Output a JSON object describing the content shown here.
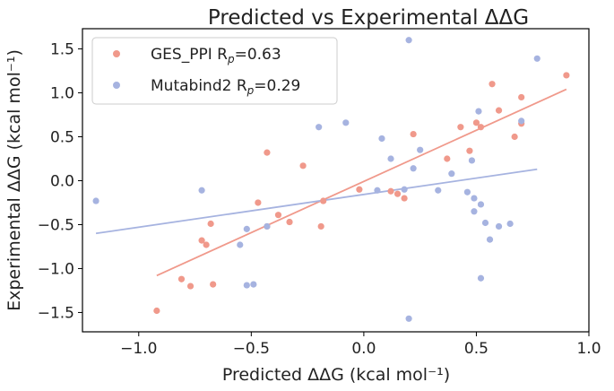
{
  "chart_data": {
    "type": "scatter",
    "title": "Predicted vs Experimental ΔΔG",
    "xlabel": "Predicted ΔΔG (kcal mol⁻¹)",
    "ylabel": "Experimental ΔΔG (kcal mol⁻¹)",
    "xlim": [
      -1.25,
      1.0
    ],
    "ylim": [
      -1.72,
      1.73
    ],
    "xticks": [
      -1.0,
      -0.5,
      0.0,
      0.5,
      1.0
    ],
    "xtick_labels": [
      "−1.0",
      "−0.5",
      "0.0",
      "0.5",
      "1.0"
    ],
    "yticks": [
      -1.5,
      -1.0,
      -0.5,
      0.0,
      0.5,
      1.0,
      1.5
    ],
    "ytick_labels": [
      "−1.5",
      "−1.0",
      "−0.5",
      "0.0",
      "0.5",
      "1.0",
      "1.5"
    ],
    "legend_position": "top-left",
    "series": [
      {
        "name": "GES_PPI",
        "legend_label": "GES_PPI R",
        "legend_sub": "p",
        "legend_value": "=0.63",
        "color": "#f0998b",
        "fit": {
          "x": [
            -0.92,
            0.9
          ],
          "y": [
            -1.08,
            1.04
          ]
        },
        "points": [
          [
            -0.92,
            -1.48
          ],
          [
            -0.81,
            -1.12
          ],
          [
            -0.77,
            -1.2
          ],
          [
            -0.72,
            -0.68
          ],
          [
            -0.7,
            -0.73
          ],
          [
            -0.68,
            -0.49
          ],
          [
            -0.67,
            -1.18
          ],
          [
            -0.47,
            -0.25
          ],
          [
            -0.43,
            0.32
          ],
          [
            -0.43,
            -0.52
          ],
          [
            -0.38,
            -0.39
          ],
          [
            -0.33,
            -0.47
          ],
          [
            -0.27,
            0.17
          ],
          [
            -0.19,
            -0.52
          ],
          [
            -0.18,
            -0.23
          ],
          [
            -0.02,
            -0.1
          ],
          [
            0.12,
            -0.12
          ],
          [
            0.15,
            -0.15
          ],
          [
            0.18,
            -0.2
          ],
          [
            0.22,
            0.53
          ],
          [
            0.37,
            0.25
          ],
          [
            0.43,
            0.61
          ],
          [
            0.47,
            0.34
          ],
          [
            0.5,
            0.66
          ],
          [
            0.52,
            0.61
          ],
          [
            0.57,
            1.1
          ],
          [
            0.6,
            0.8
          ],
          [
            0.67,
            0.5
          ],
          [
            0.7,
            0.95
          ],
          [
            0.7,
            0.65
          ],
          [
            0.9,
            1.2
          ]
        ]
      },
      {
        "name": "Mutabind2",
        "legend_label": "Mutabind2 R",
        "legend_sub": "p",
        "legend_value": "=0.29",
        "color": "#a6b3e0",
        "fit": {
          "x": [
            -1.19,
            0.77
          ],
          "y": [
            -0.6,
            0.13
          ]
        },
        "points": [
          [
            -1.19,
            -0.23
          ],
          [
            -0.72,
            -0.11
          ],
          [
            -0.55,
            -0.73
          ],
          [
            -0.52,
            -0.55
          ],
          [
            -0.52,
            -1.19
          ],
          [
            -0.49,
            -1.18
          ],
          [
            -0.43,
            -0.52
          ],
          [
            -0.2,
            0.61
          ],
          [
            -0.08,
            0.66
          ],
          [
            0.06,
            -0.11
          ],
          [
            0.08,
            0.48
          ],
          [
            0.12,
            0.25
          ],
          [
            0.18,
            -0.1
          ],
          [
            0.2,
            1.6
          ],
          [
            0.2,
            -1.57
          ],
          [
            0.22,
            0.14
          ],
          [
            0.25,
            0.35
          ],
          [
            0.33,
            -0.11
          ],
          [
            0.39,
            0.08
          ],
          [
            0.46,
            -0.13
          ],
          [
            0.48,
            0.23
          ],
          [
            0.49,
            -0.2
          ],
          [
            0.49,
            -0.35
          ],
          [
            0.51,
            0.79
          ],
          [
            0.52,
            -0.27
          ],
          [
            0.52,
            -1.11
          ],
          [
            0.54,
            -0.48
          ],
          [
            0.56,
            -0.67
          ],
          [
            0.6,
            -0.52
          ],
          [
            0.65,
            -0.49
          ],
          [
            0.7,
            0.68
          ],
          [
            0.77,
            1.39
          ]
        ]
      }
    ]
  }
}
